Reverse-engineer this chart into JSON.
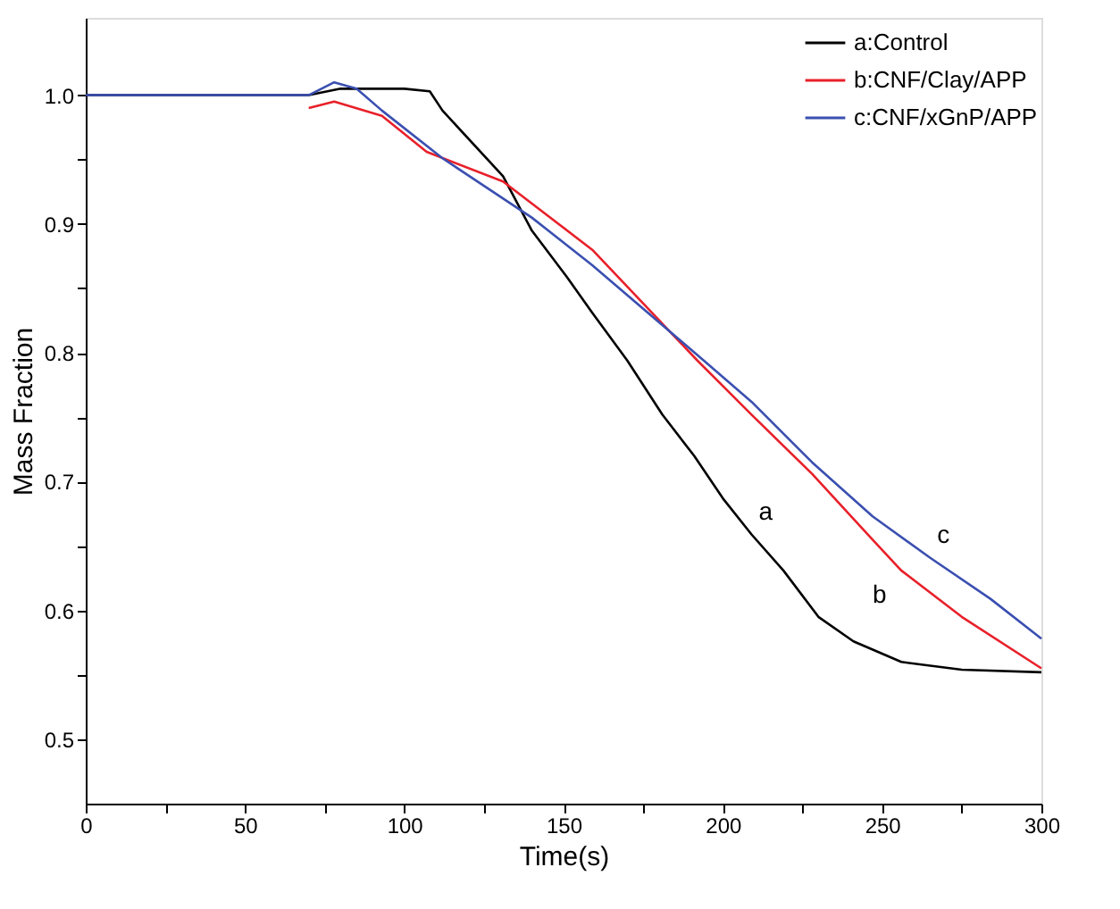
{
  "chart_data": {
    "type": "line",
    "xlabel": "Time(s)",
    "ylabel": "Mass Fraction",
    "xlim": [
      0,
      300
    ],
    "ylim": [
      0.45,
      1.06
    ],
    "xticks": [
      0,
      {
        "value": 25,
        "label": null
      },
      50,
      {
        "value": 75,
        "label": null
      },
      100,
      {
        "value": 125,
        "label": null
      },
      150,
      {
        "value": 175,
        "label": null
      },
      200,
      {
        "value": 225,
        "label": null
      },
      250,
      {
        "value": 275,
        "label": null
      },
      300
    ],
    "yticks": [
      {
        "value": 0.5,
        "label": "0.5"
      },
      {
        "value": 0.55,
        "label": null
      },
      {
        "value": 0.6,
        "label": "0.6"
      },
      {
        "value": 0.65,
        "label": null
      },
      {
        "value": 0.7,
        "label": "0.7"
      },
      {
        "value": 0.75,
        "label": null
      },
      {
        "value": 0.8,
        "label": "0.8"
      },
      {
        "value": 0.85,
        "label": null
      },
      {
        "value": 0.9,
        "label": "0.9"
      },
      {
        "value": 0.95,
        "label": null
      },
      {
        "value": 1.0,
        "label": "1.0"
      }
    ],
    "grid": false,
    "legend": "top right",
    "marker": "none",
    "line_style": "solid",
    "series": [
      {
        "name": "a:Control",
        "color": "#000000",
        "x": [
          0,
          70,
          80,
          100,
          108,
          112,
          131,
          140,
          151,
          159,
          170,
          181,
          191,
          200,
          209,
          219,
          230,
          241,
          256,
          275,
          300
        ],
        "values": [
          1.0,
          1.0,
          1.005,
          1.005,
          1.003,
          0.988,
          0.937,
          0.895,
          0.859,
          0.831,
          0.794,
          0.752,
          0.72,
          0.687,
          0.659,
          0.631,
          0.595,
          0.576,
          0.56,
          0.554,
          0.552
        ]
      },
      {
        "name": "b:CNF/Clay/APP",
        "color": "#e8202a",
        "x": [
          70,
          78,
          93,
          107,
          131,
          159,
          192,
          209,
          228,
          247,
          256,
          275,
          300
        ],
        "values": [
          0.99,
          0.995,
          0.984,
          0.956,
          0.933,
          0.88,
          0.794,
          0.752,
          0.706,
          0.655,
          0.631,
          0.595,
          0.555
        ]
      },
      {
        "name": "c:CNF/xGnP/APP",
        "color": "#3a4fb0",
        "x": [
          0,
          70,
          78,
          85,
          93,
          112,
          140,
          159,
          194,
          209,
          228,
          247,
          265,
          284,
          300
        ],
        "values": [
          1.0,
          1.0,
          1.01,
          1.005,
          0.988,
          0.951,
          0.905,
          0.868,
          0.794,
          0.762,
          0.715,
          0.673,
          0.641,
          0.609,
          0.578
        ]
      }
    ],
    "annotations": [
      {
        "text": "a",
        "x": 209,
        "y": 0.659
      },
      {
        "text": "b",
        "x": 256,
        "y": 0.631
      },
      {
        "text": "c",
        "x": 265,
        "y": 0.641
      }
    ]
  }
}
